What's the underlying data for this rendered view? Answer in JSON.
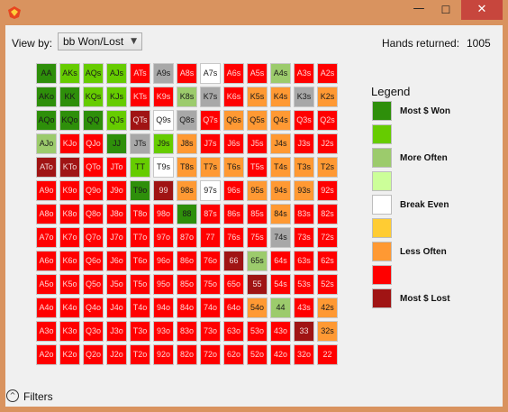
{
  "window": {
    "min_glyph": "—",
    "max_glyph": "☐",
    "close_glyph": "✕"
  },
  "toolbar": {
    "view_by_label": "View by:",
    "view_by_value": "bb Won/Lost",
    "dropdown_glyph": "▼"
  },
  "stats": {
    "hands_label": "Hands returned:",
    "hands_value": "1005"
  },
  "legend": {
    "title": "Legend",
    "items": [
      {
        "label": "Most $ Won",
        "color": "#2e8f0a"
      },
      {
        "label": "",
        "color": "#66cc00"
      },
      {
        "label": "More Often",
        "color": "#9ccb6c"
      },
      {
        "label": "",
        "color": "#ccff99"
      },
      {
        "label": "Break Even",
        "color": "#ffffff"
      },
      {
        "label": "",
        "color": "#ffcc33"
      },
      {
        "label": "Less Often",
        "color": "#ff9933"
      },
      {
        "label": "",
        "color": "#ff0000"
      },
      {
        "label": "Most $ Lost",
        "color": "#a01414"
      }
    ]
  },
  "grid": {
    "colors": {
      "dg": "#2e8f0a",
      "bg": "#66cc00",
      "lg": "#9ccb6c",
      "gy": "#a8a8a8",
      "wh": "#ffffff",
      "yo": "#ffcc33",
      "or": "#ff9933",
      "rd": "#ff0000",
      "dr": "#a01414"
    },
    "rows": [
      [
        [
          "AA",
          "dg"
        ],
        [
          "AKs",
          "bg"
        ],
        [
          "AQs",
          "bg"
        ],
        [
          "AJs",
          "bg"
        ],
        [
          "ATs",
          "rd"
        ],
        [
          "A9s",
          "gy"
        ],
        [
          "A8s",
          "rd"
        ],
        [
          "A7s",
          "wh"
        ],
        [
          "A6s",
          "rd"
        ],
        [
          "A5s",
          "rd"
        ],
        [
          "A4s",
          "lg"
        ],
        [
          "A3s",
          "rd"
        ],
        [
          "A2s",
          "rd"
        ]
      ],
      [
        [
          "AKo",
          "dg"
        ],
        [
          "KK",
          "dg"
        ],
        [
          "KQs",
          "bg"
        ],
        [
          "KJs",
          "bg"
        ],
        [
          "KTs",
          "rd"
        ],
        [
          "K9s",
          "rd"
        ],
        [
          "K8s",
          "lg"
        ],
        [
          "K7s",
          "gy"
        ],
        [
          "K6s",
          "rd"
        ],
        [
          "K5s",
          "or"
        ],
        [
          "K4s",
          "or"
        ],
        [
          "K3s",
          "gy"
        ],
        [
          "K2s",
          "or"
        ]
      ],
      [
        [
          "AQo",
          "dg"
        ],
        [
          "KQo",
          "dg"
        ],
        [
          "QQ",
          "dg"
        ],
        [
          "QJs",
          "bg"
        ],
        [
          "QTs",
          "dr"
        ],
        [
          "Q9s",
          "wh"
        ],
        [
          "Q8s",
          "gy"
        ],
        [
          "Q7s",
          "rd"
        ],
        [
          "Q6s",
          "or"
        ],
        [
          "Q5s",
          "or"
        ],
        [
          "Q4s",
          "or"
        ],
        [
          "Q3s",
          "rd"
        ],
        [
          "Q2s",
          "rd"
        ]
      ],
      [
        [
          "AJo",
          "lg"
        ],
        [
          "KJo",
          "rd"
        ],
        [
          "QJo",
          "rd"
        ],
        [
          "JJ",
          "dg"
        ],
        [
          "JTs",
          "gy"
        ],
        [
          "J9s",
          "bg"
        ],
        [
          "J8s",
          "or"
        ],
        [
          "J7s",
          "rd"
        ],
        [
          "J6s",
          "rd"
        ],
        [
          "J5s",
          "rd"
        ],
        [
          "J4s",
          "or"
        ],
        [
          "J3s",
          "rd"
        ],
        [
          "J2s",
          "rd"
        ]
      ],
      [
        [
          "ATo",
          "dr"
        ],
        [
          "KTo",
          "dr"
        ],
        [
          "QTo",
          "rd"
        ],
        [
          "JTo",
          "rd"
        ],
        [
          "TT",
          "bg"
        ],
        [
          "T9s",
          "wh"
        ],
        [
          "T8s",
          "or"
        ],
        [
          "T7s",
          "or"
        ],
        [
          "T6s",
          "or"
        ],
        [
          "T5s",
          "rd"
        ],
        [
          "T4s",
          "or"
        ],
        [
          "T3s",
          "or"
        ],
        [
          "T2s",
          "or"
        ]
      ],
      [
        [
          "A9o",
          "rd"
        ],
        [
          "K9o",
          "rd"
        ],
        [
          "Q9o",
          "rd"
        ],
        [
          "J9o",
          "rd"
        ],
        [
          "T9o",
          "dg"
        ],
        [
          "99",
          "dr"
        ],
        [
          "98s",
          "or"
        ],
        [
          "97s",
          "wh"
        ],
        [
          "96s",
          "rd"
        ],
        [
          "95s",
          "or"
        ],
        [
          "94s",
          "or"
        ],
        [
          "93s",
          "or"
        ],
        [
          "92s",
          "rd"
        ]
      ],
      [
        [
          "A8o",
          "rd"
        ],
        [
          "K8o",
          "rd"
        ],
        [
          "Q8o",
          "rd"
        ],
        [
          "J8o",
          "rd"
        ],
        [
          "T8o",
          "rd"
        ],
        [
          "98o",
          "rd"
        ],
        [
          "88",
          "dg"
        ],
        [
          "87s",
          "rd"
        ],
        [
          "86s",
          "rd"
        ],
        [
          "85s",
          "rd"
        ],
        [
          "84s",
          "or"
        ],
        [
          "83s",
          "rd"
        ],
        [
          "82s",
          "rd"
        ]
      ],
      [
        [
          "A7o",
          "rd"
        ],
        [
          "K7o",
          "rd"
        ],
        [
          "Q7o",
          "rd"
        ],
        [
          "J7o",
          "rd"
        ],
        [
          "T7o",
          "rd"
        ],
        [
          "97o",
          "rd"
        ],
        [
          "87o",
          "rd"
        ],
        [
          "77",
          "rd"
        ],
        [
          "76s",
          "rd"
        ],
        [
          "75s",
          "rd"
        ],
        [
          "74s",
          "gy"
        ],
        [
          "73s",
          "rd"
        ],
        [
          "72s",
          "rd"
        ]
      ],
      [
        [
          "A6o",
          "rd"
        ],
        [
          "K6o",
          "rd"
        ],
        [
          "Q6o",
          "rd"
        ],
        [
          "J6o",
          "rd"
        ],
        [
          "T6o",
          "rd"
        ],
        [
          "96o",
          "rd"
        ],
        [
          "86o",
          "rd"
        ],
        [
          "76o",
          "rd"
        ],
        [
          "66",
          "dr"
        ],
        [
          "65s",
          "lg"
        ],
        [
          "64s",
          "rd"
        ],
        [
          "63s",
          "rd"
        ],
        [
          "62s",
          "rd"
        ]
      ],
      [
        [
          "A5o",
          "rd"
        ],
        [
          "K5o",
          "rd"
        ],
        [
          "Q5o",
          "rd"
        ],
        [
          "J5o",
          "rd"
        ],
        [
          "T5o",
          "rd"
        ],
        [
          "95o",
          "rd"
        ],
        [
          "85o",
          "rd"
        ],
        [
          "75o",
          "rd"
        ],
        [
          "65o",
          "rd"
        ],
        [
          "55",
          "dr"
        ],
        [
          "54s",
          "rd"
        ],
        [
          "53s",
          "rd"
        ],
        [
          "52s",
          "rd"
        ]
      ],
      [
        [
          "A4o",
          "rd"
        ],
        [
          "K4o",
          "rd"
        ],
        [
          "Q4o",
          "rd"
        ],
        [
          "J4o",
          "rd"
        ],
        [
          "T4o",
          "rd"
        ],
        [
          "94o",
          "rd"
        ],
        [
          "84o",
          "rd"
        ],
        [
          "74o",
          "rd"
        ],
        [
          "64o",
          "rd"
        ],
        [
          "54o",
          "or"
        ],
        [
          "44",
          "lg"
        ],
        [
          "43s",
          "rd"
        ],
        [
          "42s",
          "or"
        ]
      ],
      [
        [
          "A3o",
          "rd"
        ],
        [
          "K3o",
          "rd"
        ],
        [
          "Q3o",
          "rd"
        ],
        [
          "J3o",
          "rd"
        ],
        [
          "T3o",
          "rd"
        ],
        [
          "93o",
          "rd"
        ],
        [
          "83o",
          "rd"
        ],
        [
          "73o",
          "rd"
        ],
        [
          "63o",
          "rd"
        ],
        [
          "53o",
          "rd"
        ],
        [
          "43o",
          "rd"
        ],
        [
          "33",
          "dr"
        ],
        [
          "32s",
          "or"
        ]
      ],
      [
        [
          "A2o",
          "rd"
        ],
        [
          "K2o",
          "rd"
        ],
        [
          "Q2o",
          "rd"
        ],
        [
          "J2o",
          "rd"
        ],
        [
          "T2o",
          "rd"
        ],
        [
          "92o",
          "rd"
        ],
        [
          "82o",
          "rd"
        ],
        [
          "72o",
          "rd"
        ],
        [
          "62o",
          "rd"
        ],
        [
          "52o",
          "rd"
        ],
        [
          "42o",
          "rd"
        ],
        [
          "32o",
          "rd"
        ],
        [
          "22",
          "rd"
        ]
      ]
    ]
  },
  "filters": {
    "label": "Filters",
    "toggle_glyph": "^"
  }
}
